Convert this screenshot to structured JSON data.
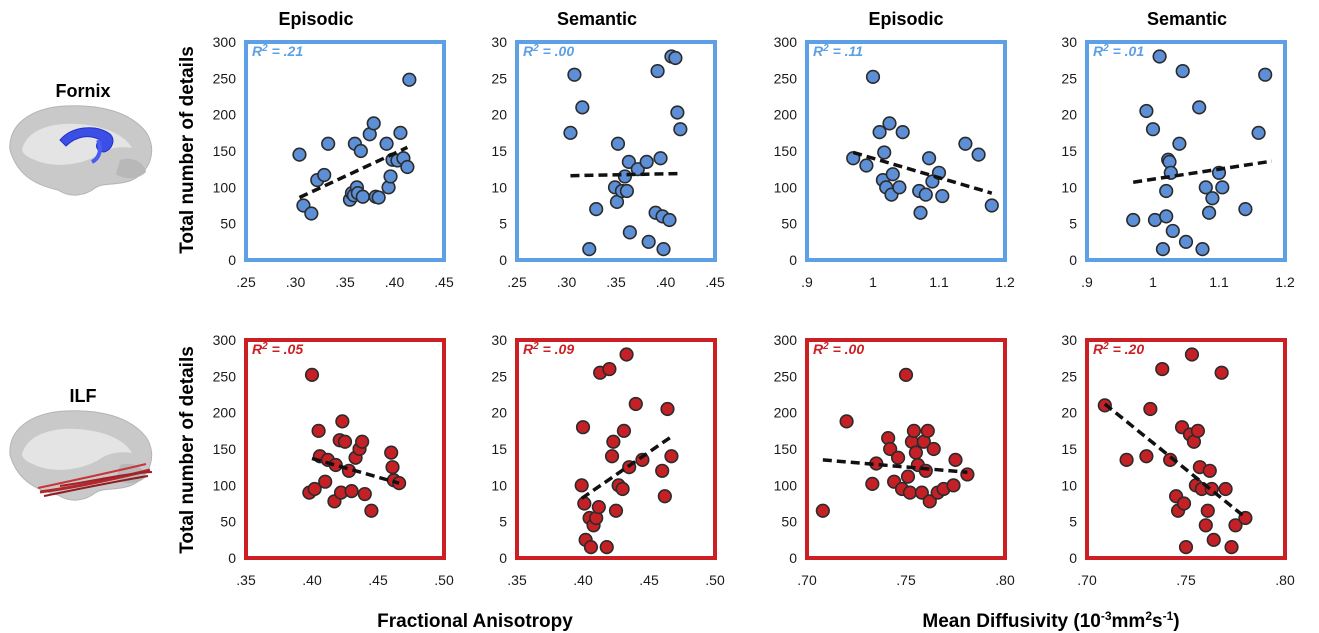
{
  "colors": {
    "top_row": "#5da0e6",
    "top_point": "#5c8fd6",
    "bottom_row": "#cc1f24",
    "bottom_point": "#c52026",
    "point_edge": "#2b2b2b",
    "trend": "#111111"
  },
  "column_titles": [
    "Episodic",
    "Semantic",
    "Episodic",
    "Semantic"
  ],
  "row_labels": [
    "Fornix",
    "ILF"
  ],
  "y_axis_label": "Total number of details",
  "x_axis_labels": {
    "fa": "Fractional Anisotropy",
    "md_prefix": "Mean Diffusivity (10",
    "md_exp1": "-3",
    "md_mid": "mm",
    "md_exp2": "2",
    "md_s": "s",
    "md_exp3": "-1",
    "md_close": ")"
  },
  "icons": [
    "brain-fornix-icon",
    "brain-ilf-icon"
  ],
  "chart_data": [
    {
      "type": "scatter",
      "row": "Fornix",
      "title": "Episodic",
      "ylabel": "Total number of details",
      "r2_prefix": "R",
      "r2_exp": "2",
      "r2_value": " = .21",
      "xlim": [
        0.25,
        0.45
      ],
      "ylim": [
        0,
        300
      ],
      "xticks": [
        ".25",
        ".30",
        ".35",
        ".40",
        ".45"
      ],
      "yticks": [
        "0",
        "50",
        "100",
        "150",
        "200",
        "250",
        "300"
      ],
      "x": [
        0.304,
        0.308,
        0.316,
        0.322,
        0.329,
        0.333,
        0.355,
        0.357,
        0.359,
        0.36,
        0.362,
        0.363,
        0.366,
        0.368,
        0.375,
        0.379,
        0.381,
        0.384,
        0.392,
        0.394,
        0.396,
        0.398,
        0.403,
        0.406,
        0.409,
        0.413,
        0.415
      ],
      "y": [
        145,
        75,
        64,
        110,
        117,
        160,
        83,
        92,
        89,
        160,
        100,
        92,
        150,
        87,
        173,
        188,
        87,
        86,
        160,
        100,
        115,
        138,
        137,
        175,
        140,
        128,
        248
      ],
      "trend": [
        [
          0.304,
          86
        ],
        [
          0.413,
          155
        ]
      ]
    },
    {
      "type": "scatter",
      "row": "Fornix",
      "title": "Semantic",
      "ylabel": "",
      "r2_prefix": "R",
      "r2_exp": "2",
      "r2_value": " = .00",
      "xlim": [
        0.25,
        0.45
      ],
      "ylim": [
        0,
        30
      ],
      "xticks": [
        ".25",
        ".30",
        ".35",
        ".40",
        ".45"
      ],
      "yticks": [
        "0",
        "5",
        "10",
        "15",
        "20",
        "25",
        "30"
      ],
      "x": [
        0.304,
        0.308,
        0.316,
        0.323,
        0.33,
        0.349,
        0.351,
        0.352,
        0.356,
        0.359,
        0.361,
        0.364,
        0.363,
        0.372,
        0.381,
        0.383,
        0.39,
        0.392,
        0.395,
        0.397,
        0.398,
        0.404,
        0.406,
        0.41,
        0.412,
        0.415
      ],
      "y": [
        17.5,
        25.5,
        21,
        1.5,
        7,
        10,
        8,
        16,
        9.5,
        11.5,
        9.5,
        3.8,
        13.5,
        12.5,
        13.5,
        2.5,
        6.5,
        26,
        14,
        6,
        1.5,
        5.5,
        28,
        27.8,
        20.3,
        18
      ],
      "trend": [
        [
          0.304,
          11.6
        ],
        [
          0.415,
          11.9
        ]
      ]
    },
    {
      "type": "scatter",
      "row": "Fornix",
      "title": "Episodic",
      "ylabel": "",
      "r2_prefix": "R",
      "r2_exp": "2",
      "r2_value": " = .11",
      "xlim": [
        0.9,
        1.2
      ],
      "ylim": [
        0,
        300
      ],
      "xticks": [
        ".9",
        "1",
        "1.1",
        "1.2"
      ],
      "yticks": [
        "0",
        "50",
        "100",
        "150",
        "200",
        "250",
        "300"
      ],
      "x": [
        0.97,
        0.99,
        1.0,
        1.01,
        1.015,
        1.017,
        1.02,
        1.025,
        1.028,
        1.03,
        1.04,
        1.045,
        1.07,
        1.072,
        1.08,
        1.085,
        1.09,
        1.1,
        1.105,
        1.14,
        1.16,
        1.18
      ],
      "y": [
        140,
        130,
        252,
        176,
        110,
        148,
        100,
        188,
        90,
        118,
        100,
        176,
        95,
        65,
        90,
        140,
        108,
        120,
        88,
        160,
        145,
        75
      ],
      "trend": [
        [
          0.97,
          148
        ],
        [
          1.18,
          92
        ]
      ]
    },
    {
      "type": "scatter",
      "row": "Fornix",
      "title": "Semantic",
      "ylabel": "",
      "r2_prefix": "R",
      "r2_exp": "2",
      "r2_value": " = .01",
      "xlim": [
        0.9,
        1.2
      ],
      "ylim": [
        0,
        30
      ],
      "xticks": [
        ".9",
        "1",
        "1.1",
        "1.2"
      ],
      "yticks": [
        "0",
        "5",
        "10",
        "15",
        "20",
        "25",
        "30"
      ],
      "x": [
        0.97,
        0.99,
        1.0,
        1.003,
        1.01,
        1.015,
        1.02,
        1.02,
        1.023,
        1.025,
        1.027,
        1.03,
        1.04,
        1.045,
        1.05,
        1.07,
        1.075,
        1.08,
        1.085,
        1.09,
        1.1,
        1.105,
        1.14,
        1.16,
        1.17
      ],
      "y": [
        5.5,
        20.5,
        18,
        5.5,
        28,
        1.5,
        6,
        9.5,
        13.8,
        13.5,
        12,
        4,
        16,
        26,
        2.5,
        21,
        1.5,
        10,
        6.5,
        8.5,
        12,
        10,
        7,
        17.5,
        25.5
      ],
      "trend": [
        [
          0.97,
          10.7
        ],
        [
          1.18,
          13.6
        ]
      ]
    },
    {
      "type": "scatter",
      "row": "ILF",
      "title": "",
      "ylabel": "Total number of details",
      "r2_prefix": "R",
      "r2_exp": "2",
      "r2_value": " = .05",
      "xlim": [
        0.35,
        0.5
      ],
      "ylim": [
        0,
        300
      ],
      "xticks": [
        ".35",
        ".40",
        ".45",
        ".50"
      ],
      "yticks": [
        "0",
        "50",
        "100",
        "150",
        "200",
        "250",
        "300"
      ],
      "x": [
        0.398,
        0.4,
        0.402,
        0.405,
        0.406,
        0.41,
        0.412,
        0.417,
        0.418,
        0.421,
        0.422,
        0.423,
        0.425,
        0.428,
        0.43,
        0.433,
        0.436,
        0.438,
        0.44,
        0.445,
        0.46,
        0.461,
        0.462,
        0.466
      ],
      "y": [
        90,
        252,
        95,
        175,
        140,
        105,
        135,
        78,
        128,
        162,
        90,
        188,
        160,
        120,
        92,
        138,
        150,
        160,
        88,
        65,
        145,
        125,
        107,
        103
      ],
      "trend": [
        [
          0.4,
          137
        ],
        [
          0.466,
          103
        ]
      ]
    },
    {
      "type": "scatter",
      "row": "ILF",
      "title": "",
      "ylabel": "",
      "r2_prefix": "R",
      "r2_exp": "2",
      "r2_value": " = .09",
      "xlim": [
        0.35,
        0.5
      ],
      "ylim": [
        0,
        30
      ],
      "xticks": [
        ".35",
        ".40",
        ".45",
        ".50"
      ],
      "yticks": [
        "0",
        "5",
        "10",
        "15",
        "20",
        "25",
        "30"
      ],
      "x": [
        0.399,
        0.4,
        0.401,
        0.402,
        0.405,
        0.406,
        0.408,
        0.41,
        0.412,
        0.413,
        0.418,
        0.42,
        0.422,
        0.423,
        0.425,
        0.427,
        0.43,
        0.431,
        0.433,
        0.435,
        0.44,
        0.445,
        0.46,
        0.462,
        0.464,
        0.467
      ],
      "y": [
        10,
        18,
        7.5,
        2.5,
        5.5,
        1.5,
        4.5,
        5.5,
        7,
        25.5,
        1.5,
        26,
        14,
        16,
        6.5,
        10,
        9.5,
        17.5,
        28,
        12.5,
        21.2,
        13.5,
        12,
        8.5,
        20.5,
        14
      ],
      "trend": [
        [
          0.399,
          8.2
        ],
        [
          0.467,
          16.7
        ]
      ]
    },
    {
      "type": "scatter",
      "row": "ILF",
      "title": "",
      "ylabel": "",
      "r2_prefix": "R",
      "r2_exp": "2",
      "r2_value": " = .00",
      "xlim": [
        0.7,
        0.8
      ],
      "ylim": [
        0,
        300
      ],
      "xticks": [
        ".70",
        ".75",
        ".80"
      ],
      "yticks": [
        "0",
        "50",
        "100",
        "150",
        "200",
        "250",
        "300"
      ],
      "x": [
        0.708,
        0.72,
        0.733,
        0.735,
        0.741,
        0.742,
        0.744,
        0.746,
        0.748,
        0.75,
        0.751,
        0.752,
        0.753,
        0.754,
        0.755,
        0.756,
        0.758,
        0.759,
        0.76,
        0.761,
        0.762,
        0.764,
        0.766,
        0.769,
        0.774,
        0.775,
        0.781
      ],
      "y": [
        65,
        188,
        102,
        130,
        165,
        150,
        105,
        138,
        95,
        252,
        112,
        90,
        160,
        175,
        145,
        128,
        90,
        160,
        120,
        175,
        78,
        150,
        90,
        95,
        100,
        135,
        115
      ],
      "trend": [
        [
          0.708,
          135
        ],
        [
          0.781,
          118
        ]
      ]
    },
    {
      "type": "scatter",
      "row": "ILF",
      "title": "",
      "ylabel": "",
      "r2_prefix": "R",
      "r2_exp": "2",
      "r2_value": " = .20",
      "xlim": [
        0.7,
        0.8
      ],
      "ylim": [
        0,
        30
      ],
      "xticks": [
        ".70",
        ".75",
        ".80"
      ],
      "yticks": [
        "0",
        "5",
        "10",
        "15",
        "20",
        "25",
        "30"
      ],
      "x": [
        0.709,
        0.72,
        0.73,
        0.732,
        0.738,
        0.742,
        0.745,
        0.746,
        0.748,
        0.749,
        0.75,
        0.752,
        0.753,
        0.754,
        0.755,
        0.756,
        0.757,
        0.758,
        0.76,
        0.761,
        0.762,
        0.763,
        0.764,
        0.768,
        0.77,
        0.773,
        0.775,
        0.78
      ],
      "y": [
        21,
        13.5,
        14,
        20.5,
        26,
        13.5,
        8.5,
        6.5,
        18,
        7.5,
        1.5,
        17,
        28,
        16,
        10,
        17.5,
        12.5,
        9.5,
        4.5,
        6.5,
        12,
        9.5,
        2.5,
        25.5,
        9.5,
        1.5,
        4.5,
        5.5
      ],
      "trend": [
        [
          0.709,
          21.2
        ],
        [
          0.779,
          5.8
        ]
      ]
    }
  ]
}
